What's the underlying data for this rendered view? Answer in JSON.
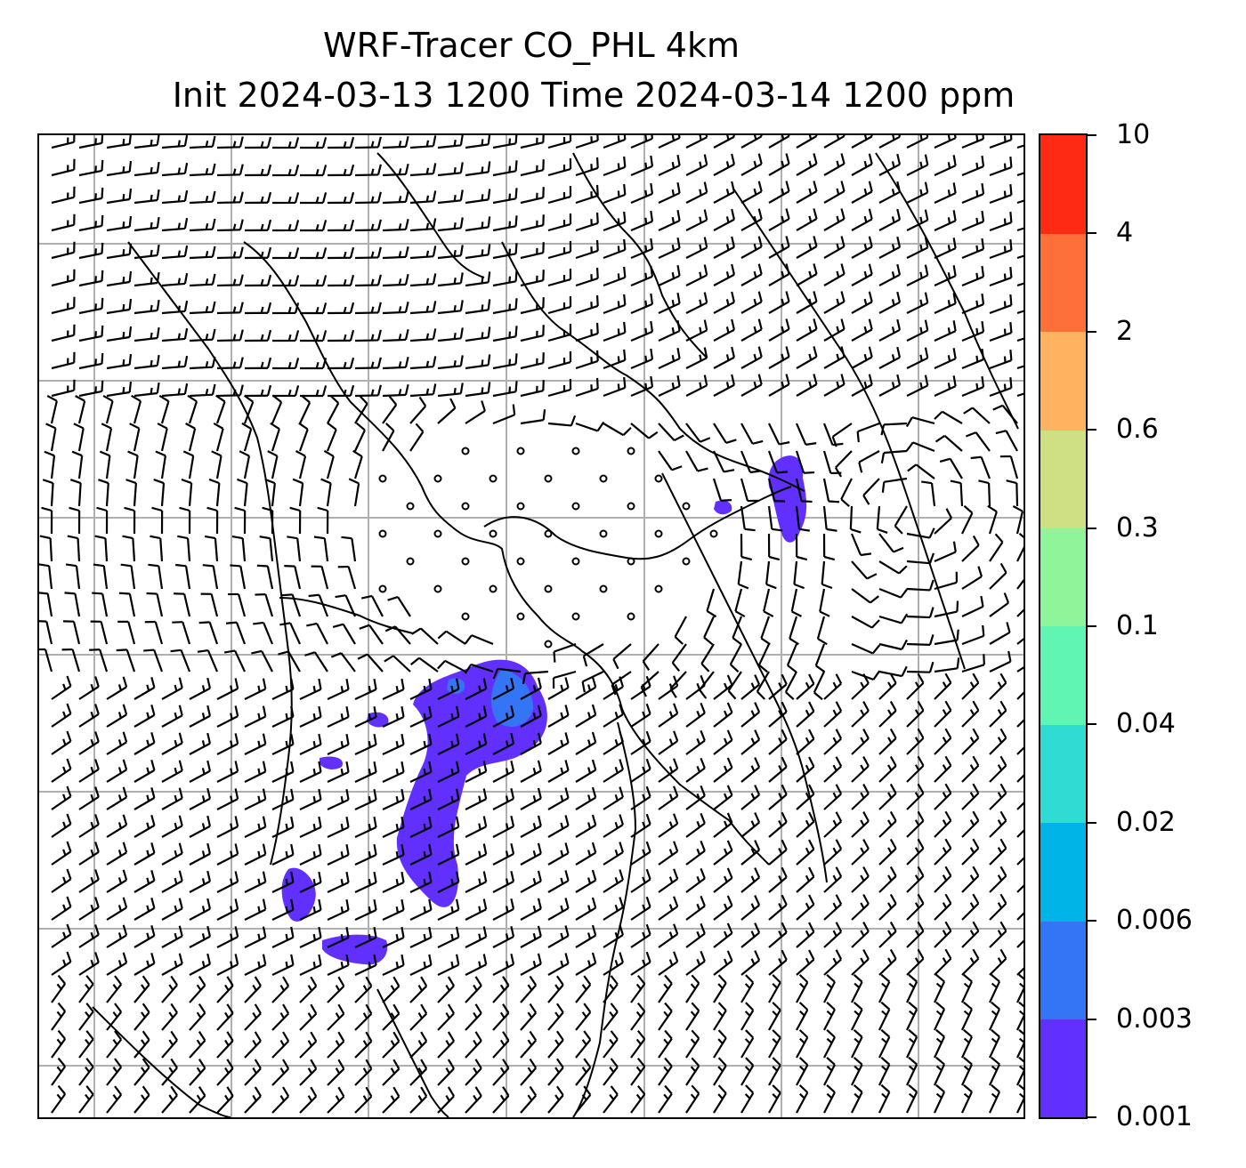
{
  "title": {
    "line1": "WRF-Tracer CO_PHL 4km",
    "line2": "Init 2024-03-13 1200 Time 2024-03-14 1200 ppm"
  },
  "map": {
    "field": "CO_PHL tracer concentration",
    "units": "ppm",
    "overlay": "wind barbs",
    "gridlines": true,
    "calm_wind_symbol": "circle",
    "coastline_color": "#000000",
    "gridline_color": "#b0b0b0"
  },
  "colorbar": {
    "levels": [
      "0.001",
      "0.003",
      "0.006",
      "0.02",
      "0.04",
      "0.1",
      "0.3",
      "0.6",
      "2",
      "4",
      "10"
    ],
    "colors": [
      "#6130ff",
      "#3375f5",
      "#00b4e8",
      "#2fdcd4",
      "#61f5b4",
      "#90f59a",
      "#cfe084",
      "#ffb25f",
      "#ff6f3a",
      "#ff2a14"
    ]
  },
  "plumes": {
    "main": {
      "color": "#6130ff",
      "inner_color": "#3375f5",
      "max_level": "0.006"
    },
    "northeast": {
      "color": "#6130ff",
      "max_level": "0.003"
    },
    "southwest": {
      "color": "#6130ff",
      "max_level": "0.003"
    }
  }
}
